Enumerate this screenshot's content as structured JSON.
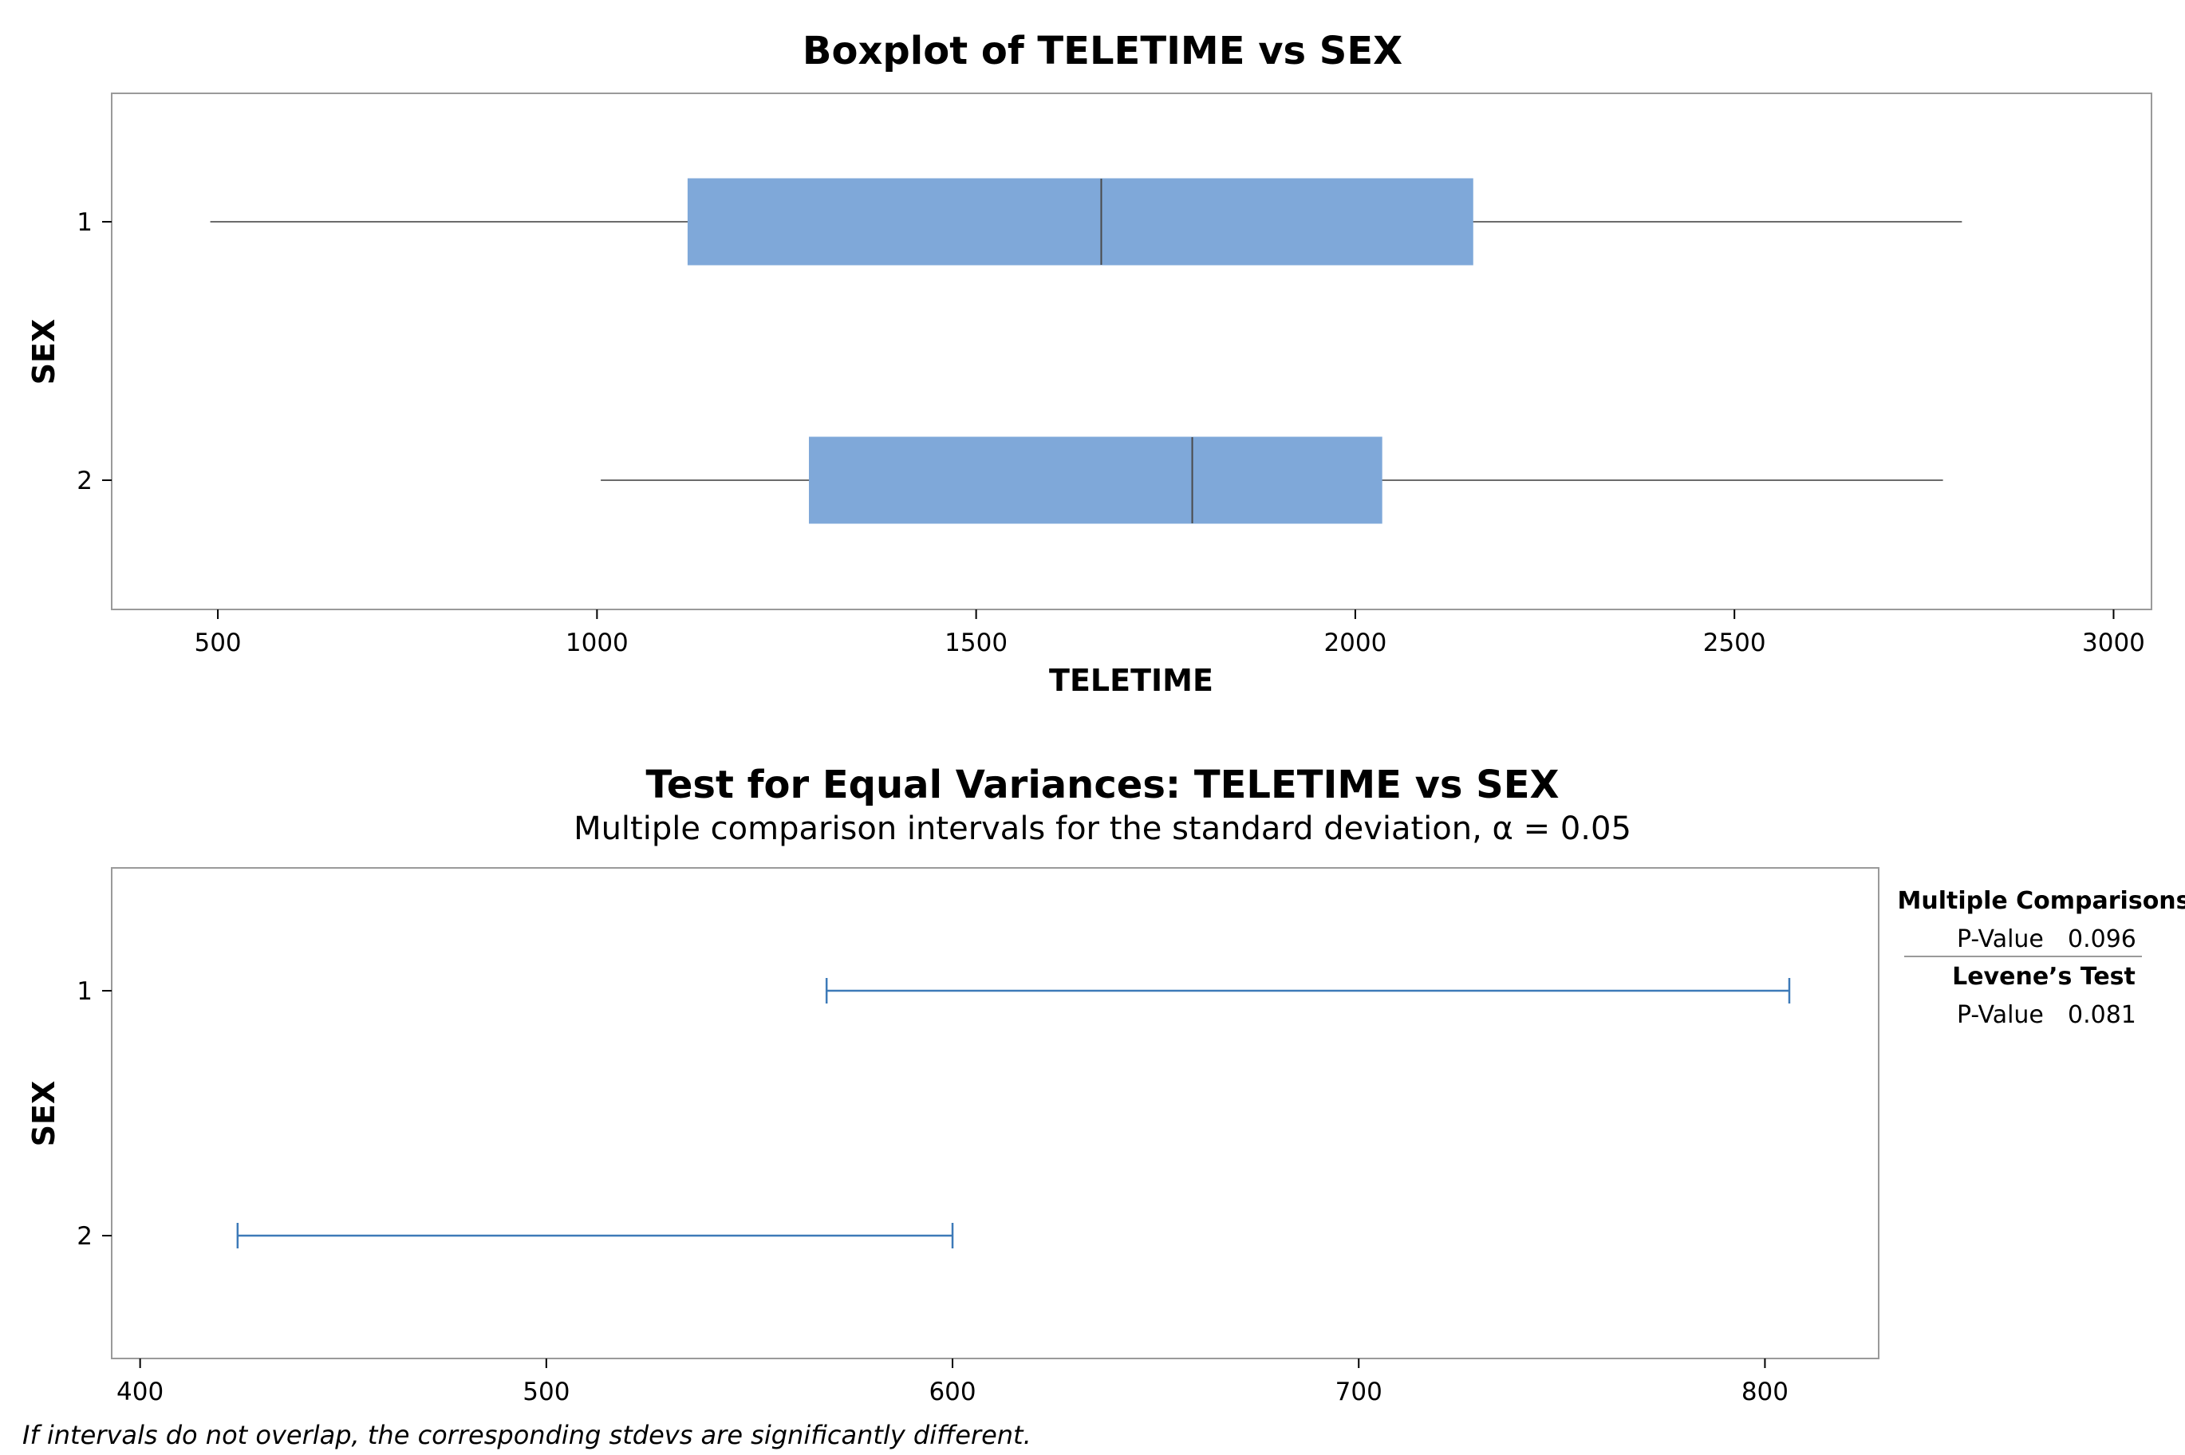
{
  "chart_data": [
    {
      "type": "boxplot",
      "title": "Boxplot of TELETIME vs SEX",
      "xlabel": "TELETIME",
      "ylabel": "SEX",
      "xlim": [
        360,
        3050
      ],
      "x_ticks": [
        500,
        1000,
        1500,
        2000,
        2500,
        3000
      ],
      "categories": [
        "1",
        "2"
      ],
      "boxes": [
        {
          "group": "1",
          "min": 490,
          "q1": 1120,
          "median": 1665,
          "q3": 2155,
          "max": 2800
        },
        {
          "group": "2",
          "min": 1005,
          "q1": 1280,
          "median": 1785,
          "q3": 2035,
          "max": 2775
        }
      ],
      "box_color": "#7fa8d9",
      "grid": false
    },
    {
      "type": "interval",
      "title": "Test for Equal Variances: TELETIME vs SEX",
      "subtitle": "Multiple comparison intervals for the standard deviation, α = 0.05",
      "xlabel": "",
      "ylabel": "SEX",
      "xlim": [
        393,
        828
      ],
      "x_ticks": [
        400,
        500,
        600,
        700,
        800
      ],
      "categories": [
        "1",
        "2"
      ],
      "intervals": [
        {
          "group": "1",
          "lower": 569,
          "upper": 806
        },
        {
          "group": "2",
          "lower": 424,
          "upper": 600
        }
      ],
      "interval_color": "#3d7ab8",
      "grid": false
    }
  ],
  "stats_panel": {
    "multiple_comparisons": {
      "heading": "Multiple Comparisons",
      "label": "P-Value",
      "value": "0.096"
    },
    "levenes_test": {
      "heading": "Levene’s Test",
      "label": "P-Value",
      "value": "0.081"
    }
  },
  "footnote": "If intervals do not overlap, the corresponding stdevs are significantly different."
}
